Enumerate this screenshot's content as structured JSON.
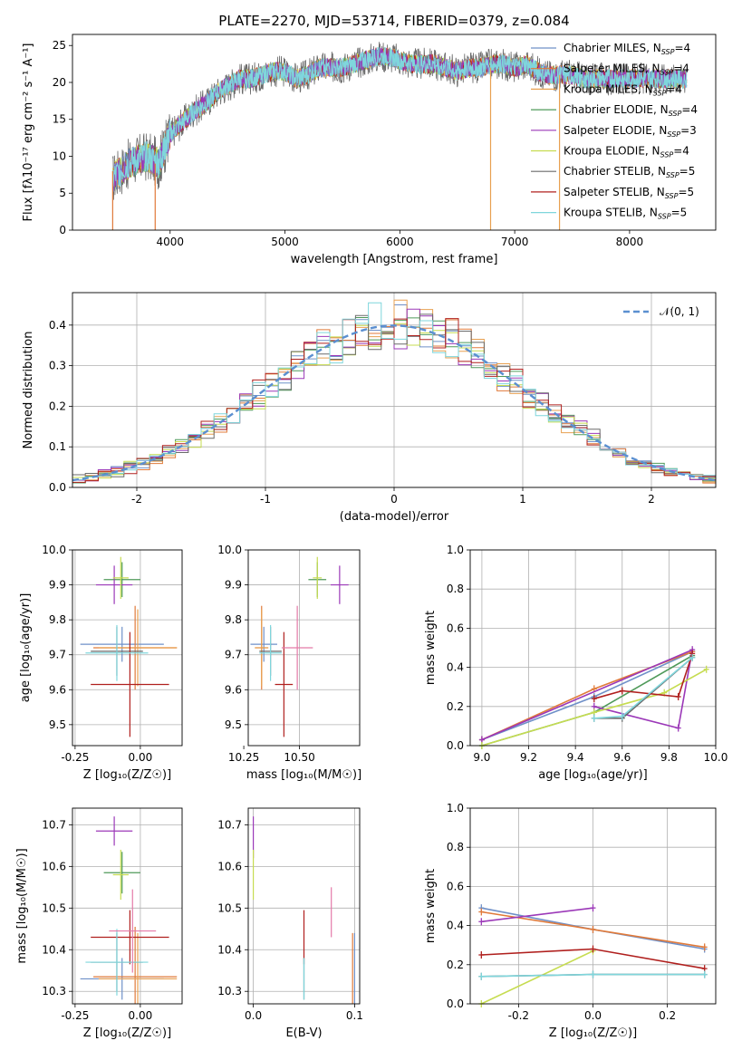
{
  "figure_title": "PLATE=2270, MJD=53714, FIBERID=0379, z=0.084",
  "colors": {
    "Chabrier MILES": "#6f90c8",
    "Salpeter MILES": "#e07a3a",
    "Kroupa MILES": "#e8a050",
    "Chabrier ELODIE": "#4f9a5a",
    "Salpeter ELODIE": "#9b38b8",
    "Kroupa ELODIE": "#c6dc50",
    "Chabrier STELIB": "#6a6a6a",
    "Salpeter STELIB": "#b0201e",
    "Kroupa STELIB": "#7fd6dc",
    "normal_curve": "#5b8fd0",
    "pink": "#e47aa8",
    "grid": "#b0b0b0"
  },
  "chart_data": [
    {
      "id": "spectrum",
      "type": "line",
      "title": "PLATE=2270, MJD=53714, FIBERID=0379, z=0.084",
      "xlabel": "wavelength [Angstrom, rest frame]",
      "ylabel": "Flux [fλ10⁻¹⁷ erg cm⁻² s⁻¹ A⁻¹]",
      "xlim": [
        3150,
        8750
      ],
      "ylim": [
        0,
        26.5
      ],
      "xticks": [
        4000,
        5000,
        6000,
        7000,
        8000
      ],
      "yticks": [
        0,
        5,
        10,
        15,
        20,
        25
      ],
      "grid": false,
      "legend_position": "right",
      "spectrum_x": [
        3500,
        3600,
        3700,
        3800,
        3900,
        3950,
        4000,
        4100,
        4200,
        4300,
        4400,
        4500,
        4600,
        4700,
        4800,
        4900,
        5000,
        5100,
        5200,
        5300,
        5400,
        5500,
        5600,
        5700,
        5800,
        5900,
        6000,
        6100,
        6200,
        6300,
        6400,
        6500,
        6600,
        6700,
        6800,
        6900,
        7000,
        7100,
        7200,
        7300,
        7400,
        7500,
        7600,
        7700,
        7800,
        7900,
        8000,
        8100,
        8200,
        8300,
        8400,
        8500
      ],
      "spectrum_y": [
        7,
        8.5,
        9.5,
        10,
        9,
        11,
        13,
        14.5,
        16,
        17,
        18.5,
        19.5,
        20.5,
        20.5,
        21,
        21.5,
        21.5,
        20.5,
        21,
        22,
        22,
        22,
        22.5,
        23,
        23.5,
        23.5,
        23,
        22.5,
        22.5,
        22.5,
        22,
        21.5,
        22,
        22,
        22.5,
        22.5,
        22,
        22.5,
        21.5,
        21,
        21,
        21,
        20.5,
        20.5,
        20.5,
        20.5,
        20.5,
        20.5,
        20.5,
        20.5,
        20.5,
        20.5
      ],
      "series": [
        {
          "name": "Chabrier MILES, N_SSP=4",
          "label": "Chabrier MILES, N",
          "sub": "SSP",
          "tail": "=4"
        },
        {
          "name": "Salpeter MILES, N_SSP=4",
          "label": "Salpeter MILES, N",
          "sub": "SSP",
          "tail": "=4"
        },
        {
          "name": "Kroupa MILES, N_SSP=4",
          "label": "Kroupa MILES, N",
          "sub": "SSP",
          "tail": "=4"
        },
        {
          "name": "Chabrier ELODIE, N_SSP=4",
          "label": "Chabrier ELODIE, N",
          "sub": "SSP",
          "tail": "=4"
        },
        {
          "name": "Salpeter ELODIE, N_SSP=3",
          "label": "Salpeter ELODIE, N",
          "sub": "SSP",
          "tail": "=3"
        },
        {
          "name": "Kroupa ELODIE, N_SSP=4",
          "label": "Kroupa ELODIE, N",
          "sub": "SSP",
          "tail": "=4"
        },
        {
          "name": "Chabrier STELIB, N_SSP=5",
          "label": "Chabrier STELIB, N",
          "sub": "SSP",
          "tail": "=5"
        },
        {
          "name": "Salpeter STELIB, N_SSP=5",
          "label": "Salpeter STELIB, N",
          "sub": "SSP",
          "tail": "=5"
        },
        {
          "name": "Kroupa STELIB, N_SSP=5",
          "label": "Kroupa STELIB, N",
          "sub": "SSP",
          "tail": "=5"
        }
      ]
    },
    {
      "id": "residual_histogram",
      "type": "line",
      "xlabel": "(data-model)/error",
      "ylabel": "Normed distribution",
      "xlim": [
        -2.5,
        2.5
      ],
      "ylim": [
        0,
        0.48
      ],
      "xticks": [
        -2,
        -1,
        0,
        1,
        2
      ],
      "yticks": [
        0.0,
        0.1,
        0.2,
        0.3,
        0.4
      ],
      "grid": true,
      "legend_position": "top-right",
      "reference_curve": {
        "name": "𝒩(0, 1)",
        "mean": 0,
        "sigma": 1,
        "style": "dashed"
      },
      "bin_width": 0.1
    },
    {
      "id": "age_vs_Z",
      "type": "scatter",
      "xlabel": "Z [log₁₀(Z/Z☉)]",
      "ylabel": "age  [log₁₀(age/yr)]",
      "xlim": [
        -0.26,
        0.16
      ],
      "ylim": [
        9.44,
        10.0
      ],
      "xticks": [
        -0.25,
        0.0
      ],
      "yticks": [
        9.5,
        9.6,
        9.7,
        9.8,
        9.9,
        10.0
      ],
      "grid": true,
      "points": [
        {
          "series": "Chabrier MILES",
          "x": -0.07,
          "y": 9.73,
          "xerr": 0.16,
          "yerr": 0.05
        },
        {
          "series": "Salpeter MILES",
          "x": -0.02,
          "y": 9.72,
          "xerr": 0.16,
          "yerr": 0.12
        },
        {
          "series": "Kroupa MILES",
          "x": -0.01,
          "y": 9.72,
          "xerr": 0.15,
          "yerr": 0.11
        },
        {
          "series": "Chabrier ELODIE",
          "x": -0.07,
          "y": 9.915,
          "xerr": 0.07,
          "yerr": 0.05
        },
        {
          "series": "Salpeter ELODIE",
          "x": -0.1,
          "y": 9.9,
          "xerr": 0.07,
          "yerr": 0.055
        },
        {
          "series": "Kroupa ELODIE",
          "x": -0.075,
          "y": 9.92,
          "xerr": 0.03,
          "yerr": 0.06
        },
        {
          "series": "Chabrier STELIB",
          "x": -0.09,
          "y": 9.71,
          "xerr": 0.1,
          "yerr": 0.07
        },
        {
          "series": "Salpeter STELIB",
          "x": -0.04,
          "y": 9.615,
          "xerr": 0.15,
          "yerr": 0.15
        },
        {
          "series": "Kroupa STELIB",
          "x": -0.09,
          "y": 9.705,
          "xerr": 0.12,
          "yerr": 0.08
        }
      ]
    },
    {
      "id": "age_vs_mass",
      "type": "scatter",
      "xlabel": "mass [log₁₀(M/M☉)]",
      "ylabel": "",
      "xlim": [
        10.27,
        10.77
      ],
      "ylim": [
        9.44,
        10.0
      ],
      "xticks": [
        10.25,
        10.5
      ],
      "tick_labels": [
        "10.25",
        "10.50"
      ],
      "yticks": [
        9.5,
        9.6,
        9.7,
        9.8,
        9.9,
        10.0
      ],
      "grid": true,
      "points": [
        {
          "series": "Chabrier MILES",
          "x": 10.34,
          "y": 9.73,
          "xerr": 0.06,
          "yerr": 0.05
        },
        {
          "series": "Salpeter MILES",
          "x": 10.33,
          "y": 9.72,
          "xerr": 0.03,
          "yerr": 0.12
        },
        {
          "series": "Kroupa MILES",
          "x": 10.33,
          "y": 9.72,
          "xerr": 0.03,
          "yerr": 0.11
        },
        {
          "series": "Chabrier ELODIE",
          "x": 10.58,
          "y": 9.915,
          "xerr": 0.04,
          "yerr": 0.05
        },
        {
          "series": "Salpeter ELODIE",
          "x": 10.68,
          "y": 9.9,
          "xerr": 0.04,
          "yerr": 0.055
        },
        {
          "series": "Kroupa ELODIE",
          "x": 10.58,
          "y": 9.92,
          "xerr": 0.02,
          "yerr": 0.06
        },
        {
          "series": "Chabrier STELIB",
          "x": 10.37,
          "y": 9.71,
          "xerr": 0.05,
          "yerr": 0.07
        },
        {
          "series": "Salpeter STELIB",
          "x": 10.43,
          "y": 9.615,
          "xerr": 0.04,
          "yerr": 0.15
        },
        {
          "series": "Kroupa STELIB",
          "x": 10.37,
          "y": 9.705,
          "xerr": 0.05,
          "yerr": 0.08
        },
        {
          "series": "pink",
          "x": 10.49,
          "y": 9.72,
          "xerr": 0.07,
          "yerr": 0.12
        }
      ]
    },
    {
      "id": "mass_weight_vs_age",
      "type": "line",
      "xlabel": "age  [log₁₀(age/yr)]",
      "ylabel": "mass weight",
      "xlim": [
        8.95,
        10.0
      ],
      "ylim": [
        0,
        1.0
      ],
      "xticks": [
        9.0,
        9.2,
        9.4,
        9.6,
        9.8,
        10.0
      ],
      "yticks": [
        0.0,
        0.2,
        0.4,
        0.6,
        0.8,
        1.0
      ],
      "grid": true,
      "series": [
        {
          "name": "Chabrier MILES",
          "x": [
            9.0,
            9.48,
            9.9
          ],
          "y": [
            0.03,
            0.25,
            0.48
          ]
        },
        {
          "name": "Salpeter MILES",
          "x": [
            9.0,
            9.48,
            9.9
          ],
          "y": [
            0.03,
            0.29,
            0.48
          ]
        },
        {
          "name": "Chabrier ELODIE",
          "x": [
            9.0,
            9.48,
            9.9
          ],
          "y": [
            0.0,
            0.17,
            0.46
          ]
        },
        {
          "name": "Salpeter ELODIE",
          "x": [
            9.48,
            9.84,
            9.9,
            9.0
          ],
          "y": [
            0.2,
            0.09,
            0.49,
            0.03
          ]
        },
        {
          "name": "Kroupa ELODIE",
          "x": [
            9.0,
            9.48,
            9.78,
            9.96
          ],
          "y": [
            0.0,
            0.17,
            0.27,
            0.39
          ]
        },
        {
          "name": "Chabrier STELIB",
          "x": [
            9.48,
            9.6,
            9.9
          ],
          "y": [
            0.14,
            0.14,
            0.45
          ]
        },
        {
          "name": "Salpeter STELIB",
          "x": [
            9.48,
            9.6,
            9.84,
            9.9
          ],
          "y": [
            0.24,
            0.28,
            0.25,
            0.47
          ]
        },
        {
          "name": "Kroupa STELIB",
          "x": [
            9.48,
            9.6,
            9.9
          ],
          "y": [
            0.14,
            0.15,
            0.45
          ]
        }
      ]
    },
    {
      "id": "mass_vs_Z",
      "type": "scatter",
      "xlabel": "Z [log₁₀(Z/Z☉)]",
      "ylabel": "mass [log₁₀(M/M☉)]",
      "xlim": [
        -0.26,
        0.16
      ],
      "ylim": [
        10.27,
        10.74
      ],
      "xticks": [
        -0.25,
        0.0
      ],
      "yticks": [
        10.3,
        10.4,
        10.5,
        10.6,
        10.7
      ],
      "grid": true,
      "points": [
        {
          "series": "Chabrier MILES",
          "x": -0.07,
          "y": 10.33,
          "xerr": 0.16,
          "yerr": 0.05
        },
        {
          "series": "Salpeter MILES",
          "x": -0.02,
          "y": 10.335,
          "xerr": 0.16,
          "yerr": 0.12
        },
        {
          "series": "Kroupa MILES",
          "x": -0.01,
          "y": 10.33,
          "xerr": 0.15,
          "yerr": 0.11
        },
        {
          "series": "Chabrier ELODIE",
          "x": -0.07,
          "y": 10.585,
          "xerr": 0.07,
          "yerr": 0.05
        },
        {
          "series": "Salpeter ELODIE",
          "x": -0.1,
          "y": 10.685,
          "xerr": 0.07,
          "yerr": 0.035
        },
        {
          "series": "Kroupa ELODIE",
          "x": -0.075,
          "y": 10.58,
          "xerr": 0.03,
          "yerr": 0.06
        },
        {
          "series": "Chabrier STELIB",
          "x": -0.09,
          "y": 10.37,
          "xerr": 0.1,
          "yerr": 0.07
        },
        {
          "series": "Salpeter STELIB",
          "x": -0.04,
          "y": 10.43,
          "xerr": 0.15,
          "yerr": 0.065
        },
        {
          "series": "Kroupa STELIB",
          "x": -0.09,
          "y": 10.37,
          "xerr": 0.12,
          "yerr": 0.08
        },
        {
          "series": "pink",
          "x": -0.03,
          "y": 10.445,
          "xerr": 0.09,
          "yerr": 0.1
        }
      ]
    },
    {
      "id": "mass_vs_EBV",
      "type": "scatter",
      "xlabel": "E(B-V)",
      "ylabel": "",
      "xlim": [
        -0.005,
        0.105
      ],
      "ylim": [
        10.27,
        10.74
      ],
      "xticks": [
        0.0,
        0.1
      ],
      "yticks": [
        10.3,
        10.4,
        10.5,
        10.6,
        10.7
      ],
      "grid": true,
      "points": [
        {
          "series": "Salpeter ELODIE",
          "x": 0.0,
          "y": 10.67,
          "xerr": 0,
          "yerr": 0.05
        },
        {
          "series": "Kroupa ELODIE",
          "x": 0.0,
          "y": 10.58,
          "xerr": 0,
          "yerr": 0.06
        },
        {
          "series": "Salpeter STELIB",
          "x": 0.05,
          "y": 10.43,
          "xerr": 0,
          "yerr": 0.065
        },
        {
          "series": "Chabrier STELIB",
          "x": 0.05,
          "y": 10.33,
          "xerr": 0,
          "yerr": 0.05
        },
        {
          "series": "Kroupa STELIB",
          "x": 0.05,
          "y": 10.33,
          "xerr": 0,
          "yerr": 0.05
        },
        {
          "series": "pink",
          "x": 0.077,
          "y": 10.49,
          "xerr": 0,
          "yerr": 0.06
        },
        {
          "series": "Salpeter MILES",
          "x": 0.098,
          "y": 10.35,
          "xerr": 0,
          "yerr": 0.09
        },
        {
          "series": "Chabrier MILES",
          "x": 0.1,
          "y": 10.35,
          "xerr": 0,
          "yerr": 0.09
        }
      ]
    },
    {
      "id": "mass_weight_vs_Z",
      "type": "line",
      "xlabel": "Z [log₁₀(Z/Z☉)]",
      "ylabel": "mass weight",
      "xlim": [
        -0.33,
        0.33
      ],
      "ylim": [
        0,
        1.0
      ],
      "xticks": [
        -0.2,
        0.0,
        0.2
      ],
      "yticks": [
        0.0,
        0.2,
        0.4,
        0.6,
        0.8,
        1.0
      ],
      "grid": true,
      "series": [
        {
          "name": "Chabrier MILES",
          "x": [
            -0.3,
            0.0,
            0.3
          ],
          "y": [
            0.49,
            0.38,
            0.28
          ]
        },
        {
          "name": "Salpeter MILES",
          "x": [
            -0.3,
            0.0,
            0.3
          ],
          "y": [
            0.47,
            0.38,
            0.29
          ]
        },
        {
          "name": "Salpeter ELODIE",
          "x": [
            -0.3,
            0.0
          ],
          "y": [
            0.42,
            0.49
          ]
        },
        {
          "name": "Kroupa ELODIE",
          "x": [
            -0.3,
            0.0
          ],
          "y": [
            0.0,
            0.27
          ]
        },
        {
          "name": "Salpeter STELIB",
          "x": [
            -0.3,
            0.0,
            0.3
          ],
          "y": [
            0.25,
            0.28,
            0.18
          ]
        },
        {
          "name": "Chabrier STELIB",
          "x": [
            -0.3,
            0.0,
            0.3
          ],
          "y": [
            0.14,
            0.15,
            0.15
          ]
        },
        {
          "name": "Kroupa STELIB",
          "x": [
            -0.3,
            0.0,
            0.3
          ],
          "y": [
            0.14,
            0.15,
            0.15
          ]
        }
      ]
    }
  ]
}
